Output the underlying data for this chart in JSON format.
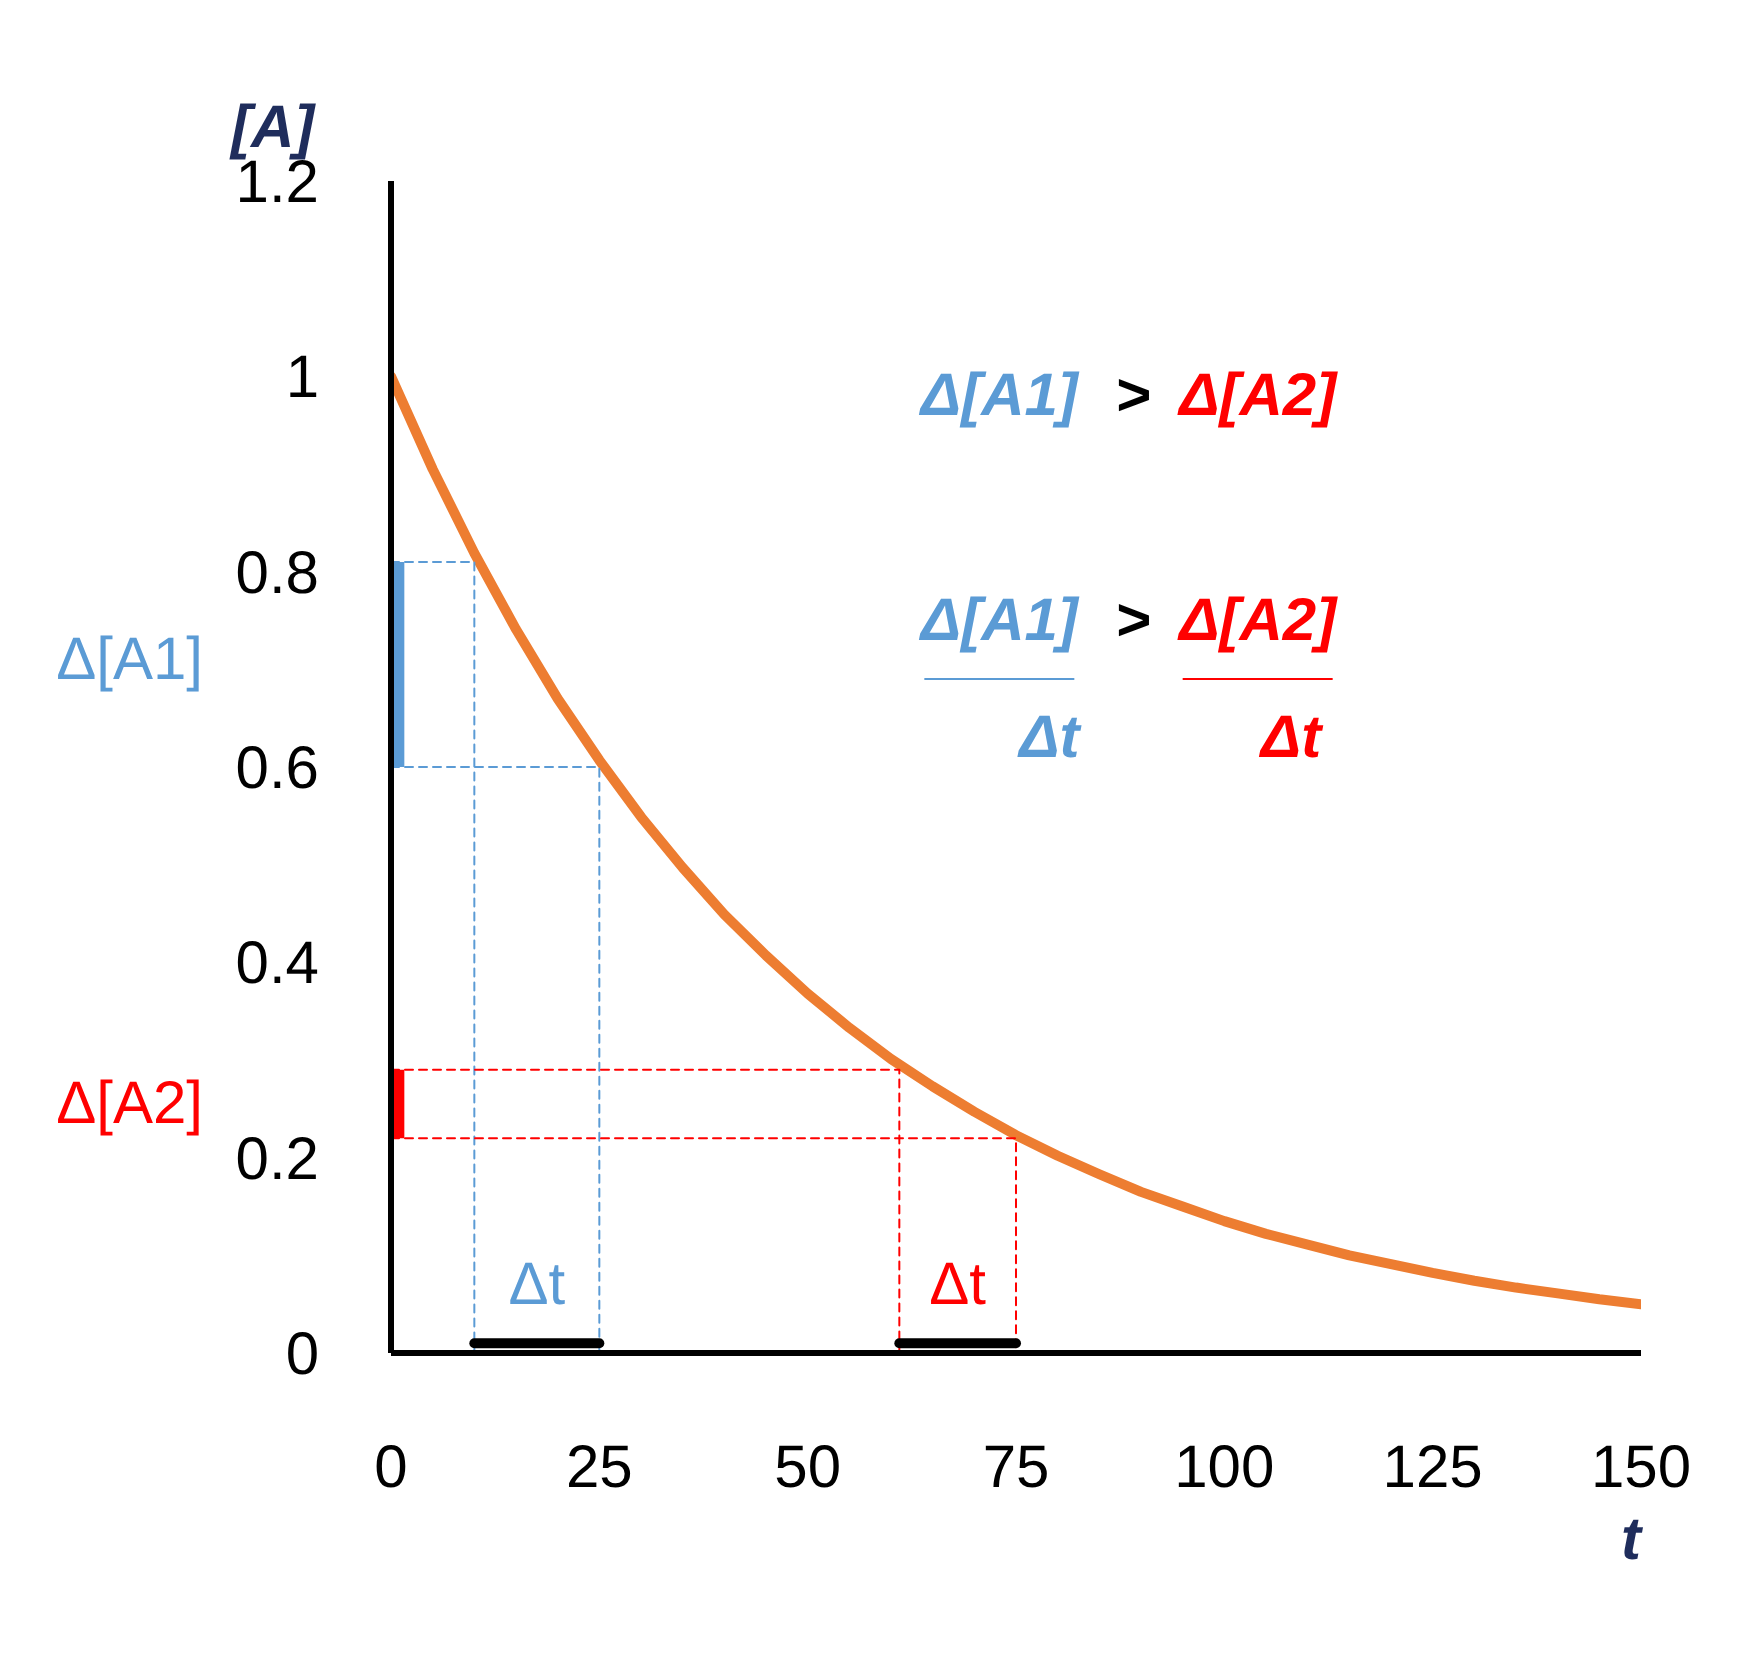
{
  "chart_data": {
    "type": "line",
    "xlabel": "t",
    "ylabel": "[A]",
    "xlim": [
      0,
      150
    ],
    "ylim": [
      0,
      1.2
    ],
    "xticks": [
      0,
      25,
      50,
      75,
      100,
      125,
      150
    ],
    "yticks": [
      0,
      0.2,
      0.4,
      0.6,
      0.8,
      1,
      1.2
    ],
    "grid": false,
    "marker": "none",
    "series": [
      {
        "color": "#ed7d31",
        "x": [
          0,
          5,
          10,
          15,
          20,
          25,
          30,
          35,
          40,
          45,
          50,
          55,
          60,
          65,
          70,
          75,
          80,
          85,
          90,
          95,
          100,
          105,
          110,
          115,
          120,
          125,
          130,
          135,
          140,
          145,
          150
        ],
        "values": [
          1.0,
          0.905,
          0.819,
          0.741,
          0.67,
          0.607,
          0.549,
          0.497,
          0.449,
          0.407,
          0.368,
          0.333,
          0.301,
          0.273,
          0.247,
          0.223,
          0.202,
          0.183,
          0.165,
          0.15,
          0.135,
          0.122,
          0.111,
          0.1,
          0.091,
          0.082,
          0.074,
          0.067,
          0.061,
          0.055,
          0.05
        ]
      },
      {
        "color": "#5b9bd5",
        "line_style": "dashed",
        "x": [
          0,
          10,
          10
        ],
        "values": [
          0.81,
          0.81,
          0
        ]
      },
      {
        "color": "#5b9bd5",
        "line_style": "dashed",
        "x": [
          0,
          25,
          25
        ],
        "values": [
          0.6,
          0.6,
          0
        ]
      },
      {
        "color": "#ff0000",
        "line_style": "dashed",
        "x": [
          0,
          61,
          61
        ],
        "values": [
          0.29,
          0.29,
          0
        ]
      },
      {
        "color": "#ff0000",
        "line_style": "dashed",
        "x": [
          0,
          75,
          75
        ],
        "values": [
          0.22,
          0.22,
          0
        ]
      },
      {
        "color": "#000000",
        "x": [
          10,
          25
        ],
        "values": [
          0.01,
          0.01
        ]
      },
      {
        "color": "#000000",
        "x": [
          61,
          75
        ],
        "values": [
          0.01,
          0.01
        ]
      },
      {
        "type": "bar",
        "color": "#5b9bd5",
        "x": [
          0.8
        ],
        "base": [
          0.6
        ],
        "values": [
          0.21
        ]
      },
      {
        "type": "bar",
        "color": "#ff0000",
        "x": [
          0.8
        ],
        "base": [
          0.22
        ],
        "values": [
          0.07
        ]
      }
    ],
    "annotations": [
      "Δ[A1]",
      "Δ[A2]",
      "Δt",
      "Δt",
      "Δ[A1]",
      ">",
      "Δ[A2]",
      "Δ[A1]",
      "Δt",
      ">",
      "Δ[A2]",
      "Δt"
    ]
  }
}
